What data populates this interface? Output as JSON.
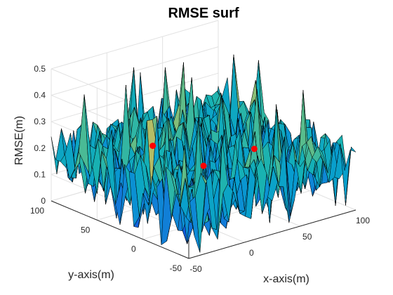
{
  "chart_data": {
    "type": "surface",
    "title": "RMSE surf",
    "xlabel": "x-axis(m)",
    "ylabel": "y-axis(m)",
    "zlabel": "RMSE(m)",
    "xlim": [
      -50,
      100
    ],
    "ylim": [
      -50,
      100
    ],
    "zlim": [
      0,
      0.5
    ],
    "x_ticks": [
      "-50",
      "0",
      "50",
      "100"
    ],
    "y_ticks": [
      "-50",
      "0",
      "50",
      "100"
    ],
    "z_ticks": [
      "0",
      "0.1",
      "0.2",
      "0.3",
      "0.4",
      "0.5"
    ],
    "grid": true,
    "colormap": "parula",
    "surface": {
      "x_range": [
        -50,
        100
      ],
      "y_range": [
        -50,
        100
      ],
      "grid_size": 30,
      "z_typical_range": [
        0.05,
        0.3
      ],
      "z_max": 0.48
    },
    "markers": {
      "color": "#ff0000",
      "points": [
        {
          "x": 0,
          "y": 50,
          "z": 0.22
        },
        {
          "x": 50,
          "y": 0,
          "z": 0.22
        },
        {
          "x": 25,
          "y": 25,
          "z": 0.15
        }
      ]
    }
  }
}
